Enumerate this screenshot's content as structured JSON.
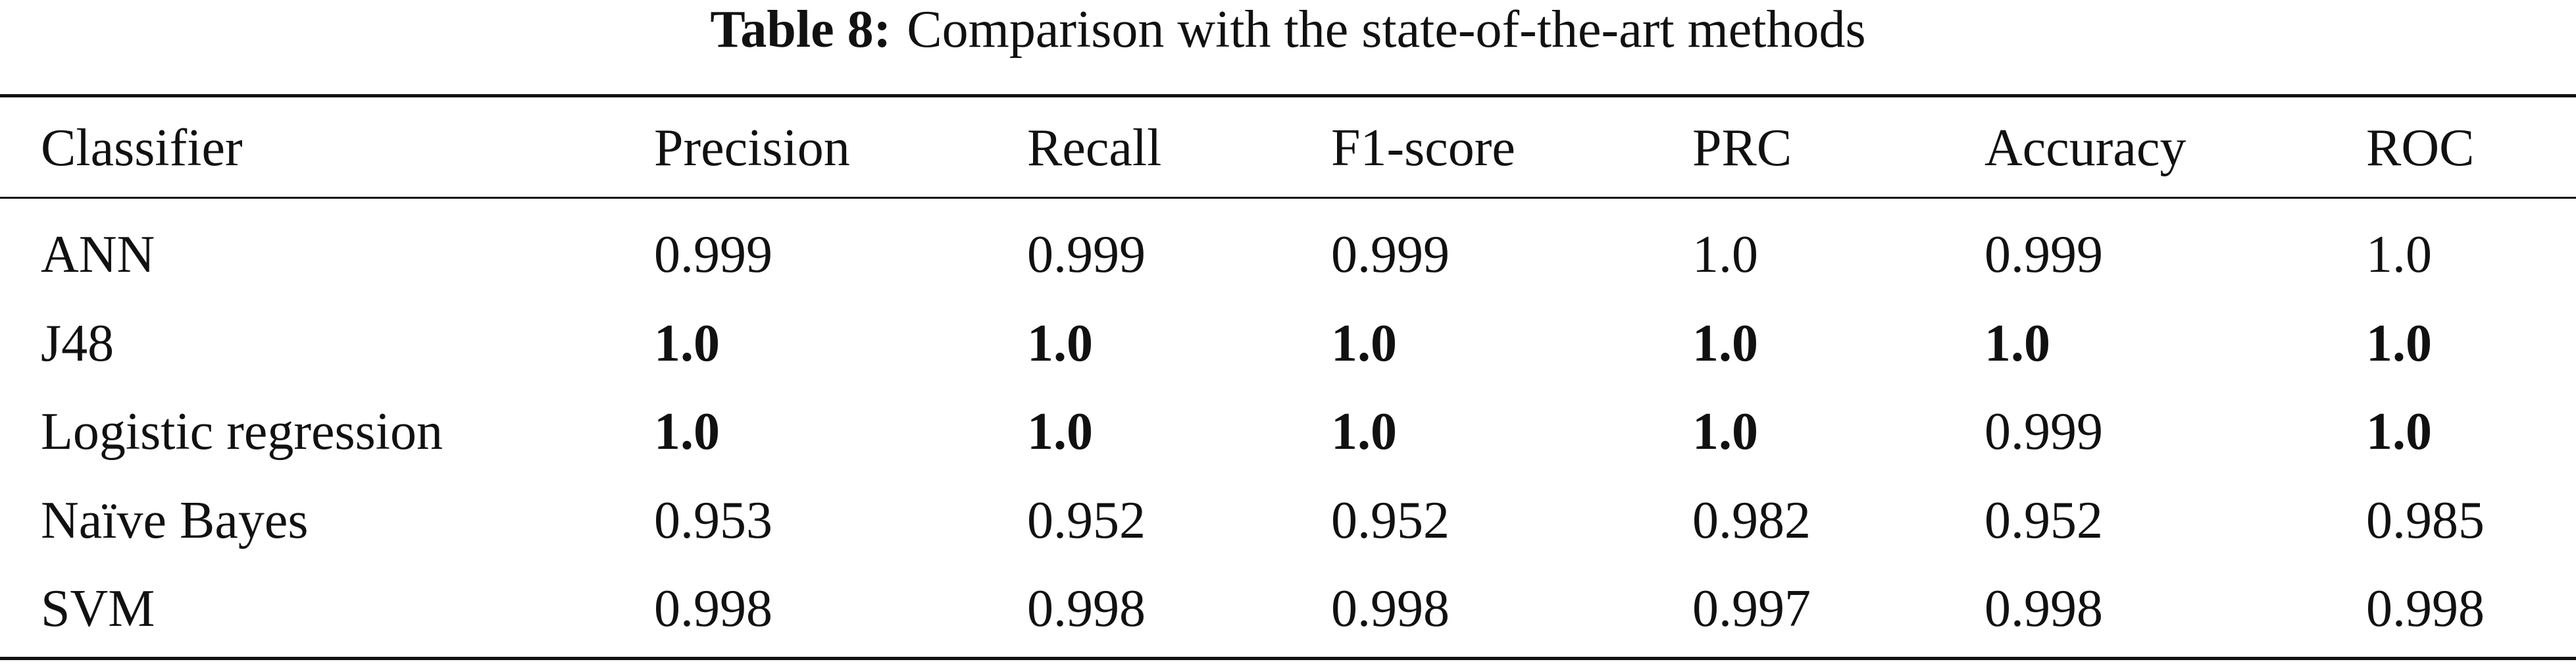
{
  "table": {
    "label": "Table 8:",
    "caption": "Comparison with the state-of-the-art methods",
    "header": [
      "Classifier",
      "Precision",
      "Recall",
      "F1-score",
      "PRC",
      "Accuracy",
      "ROC"
    ],
    "rows": [
      {
        "cells": [
          "ANN",
          "0.999",
          "0.999",
          "0.999",
          "1.0",
          "0.999",
          "1.0"
        ],
        "bold": []
      },
      {
        "cells": [
          "J48",
          "1.0",
          "1.0",
          "1.0",
          "1.0",
          "1.0",
          "1.0"
        ],
        "bold": [
          1,
          2,
          3,
          4,
          5,
          6
        ]
      },
      {
        "cells": [
          "Logistic regression",
          "1.0",
          "1.0",
          "1.0",
          "1.0",
          "0.999",
          "1.0"
        ],
        "bold": [
          1,
          2,
          3,
          4,
          6
        ]
      },
      {
        "cells": [
          "Naïve Bayes",
          "0.953",
          "0.952",
          "0.952",
          "0.982",
          "0.952",
          "0.985"
        ],
        "bold": []
      },
      {
        "cells": [
          "SVM",
          "0.998",
          "0.998",
          "0.998",
          "0.997",
          "0.998",
          "0.998"
        ],
        "bold": []
      }
    ]
  }
}
